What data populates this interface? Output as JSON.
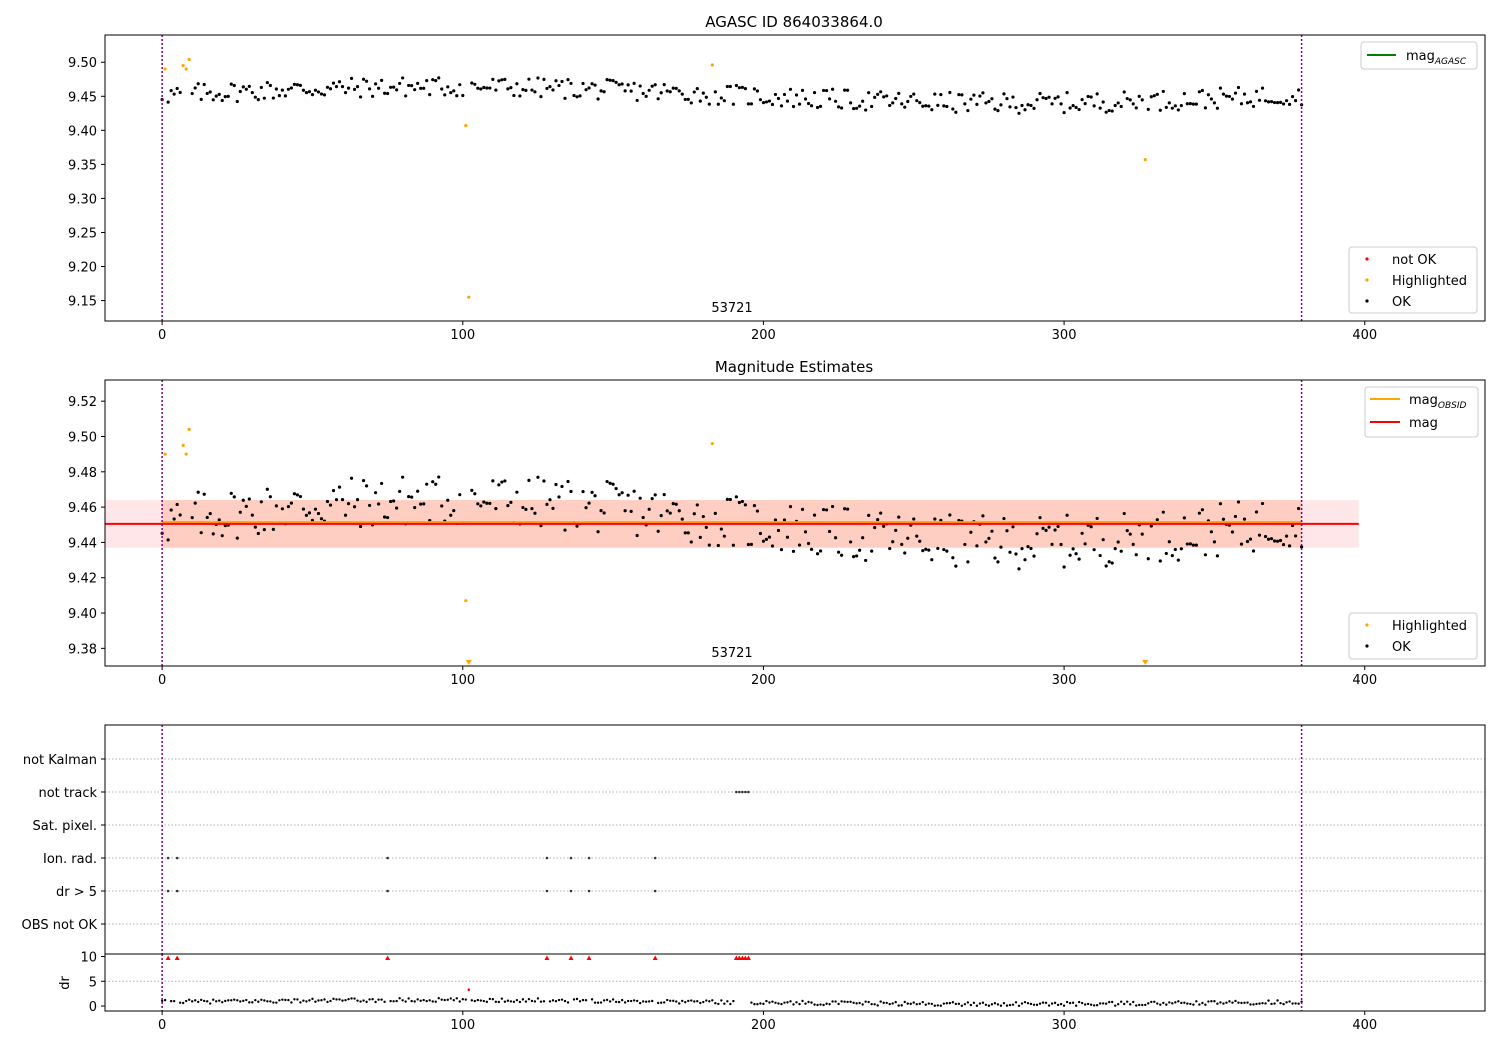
{
  "chart_data": [
    {
      "type": "scatter",
      "title": "AGASC ID 864033864.0",
      "xlim": [
        -19,
        440
      ],
      "ylim": [
        9.12,
        9.54
      ],
      "x_ticks": [
        0,
        100,
        200,
        300,
        400
      ],
      "y_ticks": [
        "9.15",
        "9.20",
        "9.25",
        "9.30",
        "9.35",
        "9.40",
        "9.45",
        "9.50"
      ],
      "vlines": [
        0,
        379
      ],
      "annotation": {
        "text": "53721",
        "x": 189,
        "y": 9.132
      },
      "legend_lines": [
        {
          "label": "mag",
          "sub": "AGASC",
          "color": "#008000"
        }
      ],
      "legend_points": [
        {
          "label": "not OK",
          "color": "#ff0000"
        },
        {
          "label": "Highlighted",
          "color": "#ffa500"
        },
        {
          "label": "OK",
          "color": "#000000"
        }
      ],
      "highlighted": [
        [
          1,
          9.49
        ],
        [
          7,
          9.495
        ],
        [
          8,
          9.49
        ],
        [
          9,
          9.504
        ],
        [
          101,
          9.407
        ],
        [
          102,
          9.155
        ],
        [
          183,
          9.496
        ],
        [
          327,
          9.357
        ]
      ],
      "ok_series": {
        "n": 380,
        "x_start": 0,
        "x_step": 1,
        "base": 9.452
      }
    },
    {
      "type": "scatter",
      "title": "Magnitude Estimates",
      "xlim": [
        -19,
        440
      ],
      "ylim": [
        9.37,
        9.532
      ],
      "x_ticks": [
        0,
        100,
        200,
        300,
        400
      ],
      "y_ticks": [
        "9.38",
        "9.40",
        "9.42",
        "9.44",
        "9.46",
        "9.48",
        "9.50",
        "9.52"
      ],
      "vlines": [
        0,
        379
      ],
      "annotation": {
        "text": "53721",
        "x": 189,
        "y": 9.375
      },
      "mag_line": {
        "y": 9.4505,
        "color": "#ff0000"
      },
      "mag_obsid_line": {
        "y": 9.4515,
        "x_range": [
          0,
          379
        ],
        "color": "#ffa500"
      },
      "band_pink": {
        "y_range": [
          9.437,
          9.464
        ],
        "x_range": [
          -19,
          398
        ],
        "color": "#ffb6c1"
      },
      "band_orange": {
        "y_range": [
          9.437,
          9.464
        ],
        "x_range": [
          0,
          379
        ],
        "color": "#ffa07a"
      },
      "legend_lines": [
        {
          "label": "mag",
          "sub": "OBSID",
          "color": "#ffa500"
        },
        {
          "label": "mag",
          "sub": "",
          "color": "#ff0000"
        }
      ],
      "legend_points": [
        {
          "label": "Highlighted",
          "color": "#ffa500"
        },
        {
          "label": "OK",
          "color": "#000000"
        }
      ],
      "highlighted": [
        [
          1,
          9.49
        ],
        [
          7,
          9.495
        ],
        [
          8,
          9.49
        ],
        [
          9,
          9.504
        ],
        [
          101,
          9.407
        ],
        [
          183,
          9.496
        ]
      ],
      "clipped_markers": [
        102,
        327
      ],
      "ok_series": {
        "n": 380,
        "x_start": 0,
        "x_step": 1,
        "base": 9.452
      }
    },
    {
      "type": "scatter",
      "title": "",
      "xlim": [
        -19,
        440
      ],
      "categories": [
        "not Kalman",
        "not track",
        "Sat. pixel.",
        "Ion. rad.",
        "dr > 5",
        "OBS not OK"
      ],
      "flags": {
        "not track": [
          191,
          192,
          193,
          194,
          195
        ],
        "Ion. rad.": [
          2,
          5,
          75,
          128,
          136,
          142,
          164
        ],
        "dr > 5": [
          2,
          5,
          75,
          128,
          136,
          142,
          164
        ]
      }
    },
    {
      "type": "scatter",
      "title": "",
      "xlim": [
        -19,
        440
      ],
      "ylim": [
        -1,
        10.5
      ],
      "x_ticks": [
        0,
        100,
        200,
        300,
        400
      ],
      "y_ticks": [
        "0",
        "5",
        "10"
      ],
      "ylabel": "dr",
      "vlines": [
        0,
        379
      ],
      "red_capped": [
        2,
        5,
        75,
        128,
        136,
        142,
        164,
        191,
        192,
        193,
        194,
        195
      ],
      "red_points": [
        [
          102,
          3.3
        ]
      ],
      "ok_series": {
        "n": 380,
        "x_start": 0,
        "x_step": 1,
        "base": 0.8
      }
    }
  ]
}
